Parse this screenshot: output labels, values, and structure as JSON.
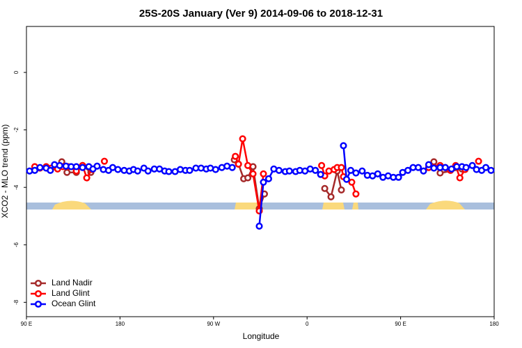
{
  "chart_data": {
    "type": "line",
    "title": "25S-20S January (Ver 9)   2014-09-06 to 2018-12-31",
    "x_label": "Longitude",
    "y_label": "XCO2 - MLO trend (ppm)",
    "xlim": [
      90,
      540
    ],
    "ylim": [
      -8.5,
      1.6
    ],
    "xticks": [
      {
        "value": 90,
        "label": "90 E"
      },
      {
        "value": 180,
        "label": "180"
      },
      {
        "value": 270,
        "label": "90 W"
      },
      {
        "value": 360,
        "label": "0"
      },
      {
        "value": 450,
        "label": "90 E"
      },
      {
        "value": 540,
        "label": "180"
      }
    ],
    "yticks": [
      0,
      -2,
      -4,
      -6,
      -8
    ],
    "legend": "bottomleft",
    "series": [
      {
        "name": "Land Nadir",
        "color": "#a52a2a",
        "x": [
          124,
          129,
          138,
          144,
          152,
          null,
          290,
          294,
          299,
          303,
          308,
          314,
          319,
          null,
          377,
          383,
          389,
          393,
          null,
          482,
          488,
          509
        ],
        "values": [
          -3.11,
          -3.48,
          -3.48,
          -3.24,
          -3.48,
          null,
          -3.04,
          -3.19,
          -3.7,
          -3.67,
          -3.28,
          -4.74,
          -4.23,
          null,
          -4.04,
          -4.33,
          -3.43,
          -4.09,
          null,
          -3.11,
          -3.5,
          -3.36
        ]
      },
      {
        "name": "Land Glint",
        "color": "#ff0000",
        "x": [
          98,
          103,
          109,
          114,
          120,
          125,
          130,
          138,
          144,
          148,
          153,
          null,
          165,
          null,
          291,
          294,
          298,
          303,
          308,
          314,
          318,
          null,
          374,
          377,
          381,
          386,
          389,
          393,
          395,
          403,
          407,
          null,
          477,
          482,
          488,
          493,
          498,
          503,
          507,
          512,
          null,
          525
        ],
        "values": [
          -3.28,
          -3.33,
          -3.28,
          -3.33,
          -3.36,
          -3.28,
          -3.28,
          -3.43,
          -3.24,
          -3.67,
          -3.38,
          null,
          -3.09,
          null,
          -2.92,
          -3.19,
          -2.31,
          -3.24,
          -3.53,
          -4.82,
          -3.53,
          null,
          -3.24,
          -3.6,
          -3.43,
          -3.38,
          -3.31,
          -3.31,
          -3.63,
          -3.82,
          -4.23,
          null,
          -3.31,
          -3.31,
          -3.24,
          -3.31,
          -3.41,
          -3.24,
          -3.67,
          -3.38,
          null,
          -3.09
        ]
      },
      {
        "name": "Ocean Glint",
        "color": "#0000ff",
        "x": [
          93,
          98,
          103,
          109,
          113,
          117,
          122,
          128,
          133,
          138,
          144,
          150,
          154,
          158,
          164,
          169,
          173,
          178,
          184,
          189,
          193,
          197,
          203,
          207,
          213,
          218,
          223,
          227,
          233,
          238,
          243,
          247,
          253,
          258,
          263,
          267,
          272,
          278,
          283,
          288,
          null,
          314,
          318,
          323,
          328,
          333,
          339,
          343,
          349,
          353,
          358,
          363,
          368,
          373,
          null,
          395,
          398,
          402,
          407,
          413,
          418,
          423,
          428,
          433,
          438,
          443,
          448,
          452,
          457,
          462,
          467,
          472,
          477,
          482,
          488,
          493,
          499,
          504,
          509,
          513,
          519,
          523,
          528,
          532,
          537
        ],
        "values": [
          -3.43,
          -3.41,
          -3.31,
          -3.33,
          -3.41,
          -3.21,
          -3.24,
          -3.26,
          -3.28,
          -3.28,
          -3.31,
          -3.28,
          -3.36,
          -3.26,
          -3.38,
          -3.41,
          -3.31,
          -3.38,
          -3.41,
          -3.43,
          -3.38,
          -3.43,
          -3.33,
          -3.43,
          -3.36,
          -3.36,
          -3.43,
          -3.45,
          -3.45,
          -3.38,
          -3.41,
          -3.41,
          -3.33,
          -3.33,
          -3.36,
          -3.33,
          -3.38,
          -3.31,
          -3.26,
          -3.31,
          null,
          -5.35,
          -3.82,
          -3.7,
          -3.36,
          -3.41,
          -3.45,
          -3.43,
          -3.45,
          -3.41,
          -3.43,
          -3.36,
          -3.41,
          -3.55,
          null,
          -2.55,
          -3.72,
          -3.41,
          -3.5,
          -3.43,
          -3.58,
          -3.6,
          -3.53,
          -3.65,
          -3.6,
          -3.65,
          -3.65,
          -3.48,
          -3.41,
          -3.31,
          -3.31,
          -3.43,
          -3.21,
          -3.33,
          -3.31,
          -3.31,
          -3.36,
          -3.28,
          -3.28,
          -3.31,
          -3.24,
          -3.38,
          -3.41,
          -3.31,
          -3.41
        ]
      }
    ]
  }
}
